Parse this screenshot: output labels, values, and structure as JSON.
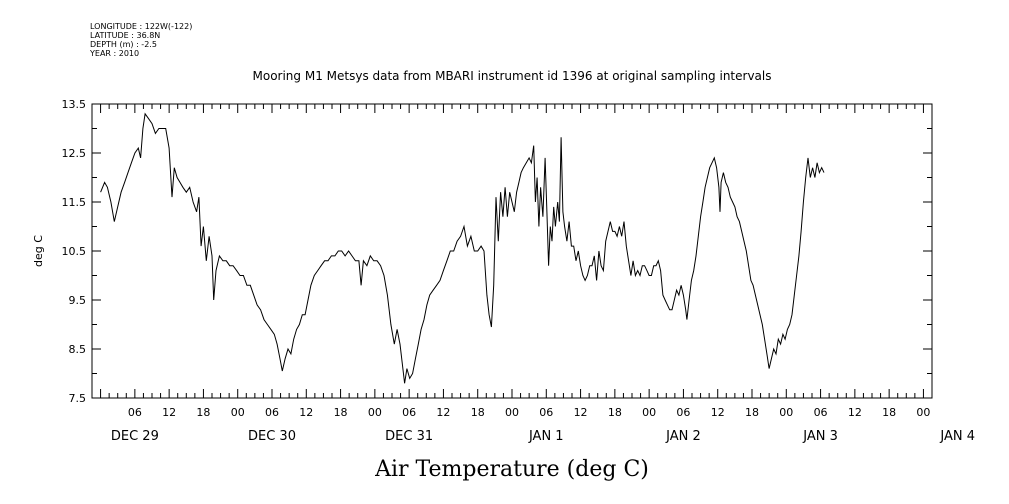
{
  "meta": {
    "longitude": "LONGITUDE : 122W(-122)",
    "latitude": "LATITUDE : 36.8N",
    "depth": "DEPTH (m) : -2.5",
    "year": "YEAR : 2010"
  },
  "chart_data": {
    "type": "line",
    "title": "Mooring M1 Metsys data from MBARI instrument id 1396 at original sampling intervals",
    "xlabel": "Air Temperature (deg C)",
    "ylabel": "deg C",
    "ylim": [
      7.5,
      13.5
    ],
    "yticks": [
      7.5,
      8.5,
      9.5,
      10.5,
      11.5,
      12.5,
      13.5
    ],
    "x_unit": "hours since Dec 29 00:00",
    "xlim": [
      -1.5,
      145.5
    ],
    "hour_tick_labels": [
      {
        "x": 6,
        "label": "06"
      },
      {
        "x": 12,
        "label": "12"
      },
      {
        "x": 18,
        "label": "18"
      },
      {
        "x": 24,
        "label": "00"
      },
      {
        "x": 30,
        "label": "06"
      },
      {
        "x": 36,
        "label": "12"
      },
      {
        "x": 42,
        "label": "18"
      },
      {
        "x": 48,
        "label": "00"
      },
      {
        "x": 54,
        "label": "06"
      },
      {
        "x": 60,
        "label": "12"
      },
      {
        "x": 66,
        "label": "18"
      },
      {
        "x": 72,
        "label": "00"
      },
      {
        "x": 78,
        "label": "06"
      },
      {
        "x": 84,
        "label": "12"
      },
      {
        "x": 90,
        "label": "18"
      },
      {
        "x": 96,
        "label": "00"
      },
      {
        "x": 102,
        "label": "06"
      },
      {
        "x": 108,
        "label": "12"
      },
      {
        "x": 114,
        "label": "18"
      },
      {
        "x": 120,
        "label": "00"
      },
      {
        "x": 126,
        "label": "06"
      },
      {
        "x": 132,
        "label": "12"
      },
      {
        "x": 138,
        "label": "18"
      },
      {
        "x": 144,
        "label": "00"
      }
    ],
    "day_labels": [
      {
        "x": 6,
        "label": "DEC 29"
      },
      {
        "x": 30,
        "label": "DEC 30"
      },
      {
        "x": 54,
        "label": "DEC 31"
      },
      {
        "x": 78,
        "label": "JAN  1"
      },
      {
        "x": 102,
        "label": "JAN  2"
      },
      {
        "x": 126,
        "label": "JAN  3"
      },
      {
        "x": 150,
        "label": "JAN  4"
      }
    ],
    "grid": false,
    "series": [
      {
        "color": "#000000",
        "points": [
          [
            0.0,
            11.7
          ],
          [
            0.7,
            11.9
          ],
          [
            1.2,
            11.8
          ],
          [
            1.8,
            11.5
          ],
          [
            2.4,
            11.1
          ],
          [
            3.0,
            11.4
          ],
          [
            3.6,
            11.7
          ],
          [
            4.2,
            11.9
          ],
          [
            4.8,
            12.1
          ],
          [
            5.4,
            12.3
          ],
          [
            6.0,
            12.5
          ],
          [
            6.6,
            12.6
          ],
          [
            7.0,
            12.4
          ],
          [
            7.4,
            13.0
          ],
          [
            7.8,
            13.3
          ],
          [
            8.4,
            13.2
          ],
          [
            9.0,
            13.1
          ],
          [
            9.6,
            12.9
          ],
          [
            10.2,
            13.0
          ],
          [
            10.8,
            13.0
          ],
          [
            11.4,
            13.0
          ],
          [
            12.0,
            12.6
          ],
          [
            12.5,
            11.6
          ],
          [
            12.9,
            12.2
          ],
          [
            13.4,
            12.0
          ],
          [
            13.9,
            11.9
          ],
          [
            14.4,
            11.8
          ],
          [
            15.0,
            11.7
          ],
          [
            15.6,
            11.8
          ],
          [
            16.2,
            11.5
          ],
          [
            16.8,
            11.3
          ],
          [
            17.2,
            11.6
          ],
          [
            17.6,
            10.6
          ],
          [
            18.0,
            11.0
          ],
          [
            18.5,
            10.3
          ],
          [
            19.0,
            10.8
          ],
          [
            19.5,
            10.4
          ],
          [
            19.8,
            9.5
          ],
          [
            20.2,
            10.1
          ],
          [
            20.8,
            10.4
          ],
          [
            21.4,
            10.3
          ],
          [
            22.0,
            10.3
          ],
          [
            22.6,
            10.2
          ],
          [
            23.2,
            10.2
          ],
          [
            23.8,
            10.1
          ],
          [
            24.4,
            10.0
          ],
          [
            25.0,
            10.0
          ],
          [
            25.6,
            9.8
          ],
          [
            26.2,
            9.8
          ],
          [
            26.8,
            9.6
          ],
          [
            27.4,
            9.4
          ],
          [
            28.0,
            9.3
          ],
          [
            28.6,
            9.1
          ],
          [
            29.2,
            9.0
          ],
          [
            29.8,
            8.9
          ],
          [
            30.4,
            8.8
          ],
          [
            30.9,
            8.6
          ],
          [
            31.4,
            8.3
          ],
          [
            31.8,
            8.05
          ],
          [
            32.3,
            8.3
          ],
          [
            32.8,
            8.5
          ],
          [
            33.3,
            8.4
          ],
          [
            33.8,
            8.7
          ],
          [
            34.3,
            8.9
          ],
          [
            34.8,
            9.0
          ],
          [
            35.3,
            9.2
          ],
          [
            35.8,
            9.2
          ],
          [
            36.3,
            9.5
          ],
          [
            36.8,
            9.8
          ],
          [
            37.4,
            10.0
          ],
          [
            38.0,
            10.1
          ],
          [
            38.6,
            10.2
          ],
          [
            39.2,
            10.3
          ],
          [
            39.8,
            10.3
          ],
          [
            40.4,
            10.4
          ],
          [
            41.0,
            10.4
          ],
          [
            41.6,
            10.5
          ],
          [
            42.2,
            10.5
          ],
          [
            42.8,
            10.4
          ],
          [
            43.4,
            10.5
          ],
          [
            44.0,
            10.4
          ],
          [
            44.6,
            10.3
          ],
          [
            45.2,
            10.3
          ],
          [
            45.6,
            9.8
          ],
          [
            46.0,
            10.3
          ],
          [
            46.6,
            10.2
          ],
          [
            47.2,
            10.4
          ],
          [
            47.8,
            10.3
          ],
          [
            48.4,
            10.3
          ],
          [
            49.0,
            10.2
          ],
          [
            49.6,
            10.0
          ],
          [
            50.2,
            9.6
          ],
          [
            50.8,
            9.0
          ],
          [
            51.4,
            8.6
          ],
          [
            51.9,
            8.9
          ],
          [
            52.4,
            8.6
          ],
          [
            52.8,
            8.2
          ],
          [
            53.2,
            7.8
          ],
          [
            53.6,
            8.1
          ],
          [
            54.1,
            7.9
          ],
          [
            54.6,
            8.0
          ],
          [
            55.1,
            8.3
          ],
          [
            55.6,
            8.6
          ],
          [
            56.1,
            8.9
          ],
          [
            56.6,
            9.1
          ],
          [
            57.1,
            9.4
          ],
          [
            57.6,
            9.6
          ],
          [
            58.2,
            9.7
          ],
          [
            58.8,
            9.8
          ],
          [
            59.4,
            9.9
          ],
          [
            60.0,
            10.1
          ],
          [
            60.6,
            10.3
          ],
          [
            61.2,
            10.5
          ],
          [
            61.8,
            10.5
          ],
          [
            62.4,
            10.7
          ],
          [
            63.0,
            10.8
          ],
          [
            63.6,
            11.0
          ],
          [
            64.2,
            10.6
          ],
          [
            64.8,
            10.8
          ],
          [
            65.4,
            10.5
          ],
          [
            66.0,
            10.5
          ],
          [
            66.6,
            10.6
          ],
          [
            67.1,
            10.5
          ],
          [
            67.6,
            9.6
          ],
          [
            68.0,
            9.2
          ],
          [
            68.4,
            8.95
          ],
          [
            68.8,
            9.8
          ],
          [
            69.2,
            11.6
          ],
          [
            69.6,
            10.7
          ],
          [
            70.0,
            11.7
          ],
          [
            70.4,
            11.2
          ],
          [
            70.8,
            11.8
          ],
          [
            71.2,
            11.2
          ],
          [
            71.6,
            11.7
          ],
          [
            72.0,
            11.5
          ],
          [
            72.4,
            11.3
          ],
          [
            72.8,
            11.7
          ],
          [
            73.2,
            11.9
          ],
          [
            73.6,
            12.1
          ],
          [
            74.0,
            12.2
          ],
          [
            74.5,
            12.3
          ],
          [
            75.0,
            12.4
          ],
          [
            75.4,
            12.3
          ],
          [
            75.8,
            12.65
          ],
          [
            76.1,
            11.5
          ],
          [
            76.4,
            12.0
          ],
          [
            76.7,
            11.0
          ],
          [
            77.0,
            11.8
          ],
          [
            77.4,
            11.2
          ],
          [
            77.8,
            12.4
          ],
          [
            78.1,
            11.3
          ],
          [
            78.4,
            10.2
          ],
          [
            78.7,
            11.0
          ],
          [
            79.0,
            10.7
          ],
          [
            79.3,
            11.4
          ],
          [
            79.6,
            11.0
          ],
          [
            80.0,
            11.5
          ],
          [
            80.3,
            11.1
          ],
          [
            80.6,
            12.82
          ],
          [
            80.9,
            11.3
          ],
          [
            81.2,
            11.0
          ],
          [
            81.6,
            10.7
          ],
          [
            82.0,
            11.1
          ],
          [
            82.4,
            10.6
          ],
          [
            82.8,
            10.6
          ],
          [
            83.2,
            10.3
          ],
          [
            83.6,
            10.5
          ],
          [
            84.0,
            10.2
          ],
          [
            84.4,
            10.0
          ],
          [
            84.8,
            9.9
          ],
          [
            85.2,
            10.0
          ],
          [
            85.6,
            10.2
          ],
          [
            86.0,
            10.2
          ],
          [
            86.4,
            10.4
          ],
          [
            86.8,
            9.9
          ],
          [
            87.2,
            10.5
          ],
          [
            87.6,
            10.2
          ],
          [
            88.0,
            10.1
          ],
          [
            88.4,
            10.7
          ],
          [
            88.8,
            10.9
          ],
          [
            89.2,
            11.1
          ],
          [
            89.6,
            10.9
          ],
          [
            90.0,
            10.9
          ],
          [
            90.4,
            10.8
          ],
          [
            90.8,
            11.0
          ],
          [
            91.2,
            10.8
          ],
          [
            91.6,
            11.1
          ],
          [
            92.0,
            10.6
          ],
          [
            92.4,
            10.3
          ],
          [
            92.8,
            10.0
          ],
          [
            93.2,
            10.3
          ],
          [
            93.6,
            10.0
          ],
          [
            94.0,
            10.1
          ],
          [
            94.4,
            10.0
          ],
          [
            94.8,
            10.2
          ],
          [
            95.2,
            10.2
          ],
          [
            95.6,
            10.1
          ],
          [
            96.0,
            10.0
          ],
          [
            96.4,
            10.0
          ],
          [
            96.8,
            10.2
          ],
          [
            97.2,
            10.2
          ],
          [
            97.6,
            10.3
          ],
          [
            98.0,
            10.1
          ],
          [
            98.4,
            9.6
          ],
          [
            98.8,
            9.5
          ],
          [
            99.2,
            9.4
          ],
          [
            99.6,
            9.3
          ],
          [
            100.0,
            9.3
          ],
          [
            100.4,
            9.5
          ],
          [
            100.8,
            9.7
          ],
          [
            101.2,
            9.6
          ],
          [
            101.6,
            9.8
          ],
          [
            102.0,
            9.6
          ],
          [
            102.4,
            9.3
          ],
          [
            102.6,
            9.1
          ],
          [
            103.0,
            9.5
          ],
          [
            103.4,
            9.9
          ],
          [
            103.8,
            10.1
          ],
          [
            104.2,
            10.4
          ],
          [
            104.6,
            10.8
          ],
          [
            105.0,
            11.2
          ],
          [
            105.4,
            11.5
          ],
          [
            105.8,
            11.8
          ],
          [
            106.2,
            12.0
          ],
          [
            106.6,
            12.2
          ],
          [
            107.0,
            12.3
          ],
          [
            107.4,
            12.4
          ],
          [
            107.8,
            12.2
          ],
          [
            108.2,
            11.8
          ],
          [
            108.4,
            11.3
          ],
          [
            108.6,
            11.9
          ],
          [
            109.0,
            12.1
          ],
          [
            109.4,
            11.9
          ],
          [
            109.8,
            11.8
          ],
          [
            110.2,
            11.6
          ],
          [
            110.6,
            11.5
          ],
          [
            111.0,
            11.4
          ],
          [
            111.4,
            11.2
          ],
          [
            111.8,
            11.1
          ],
          [
            112.2,
            10.9
          ],
          [
            112.6,
            10.7
          ],
          [
            113.0,
            10.5
          ],
          [
            113.4,
            10.2
          ],
          [
            113.8,
            9.9
          ],
          [
            114.2,
            9.8
          ],
          [
            114.6,
            9.6
          ],
          [
            115.0,
            9.4
          ],
          [
            115.4,
            9.2
          ],
          [
            115.8,
            9.0
          ],
          [
            116.2,
            8.7
          ],
          [
            116.6,
            8.4
          ],
          [
            117.0,
            8.1
          ],
          [
            117.4,
            8.3
          ],
          [
            117.8,
            8.5
          ],
          [
            118.2,
            8.4
          ],
          [
            118.6,
            8.7
          ],
          [
            119.0,
            8.6
          ],
          [
            119.4,
            8.8
          ],
          [
            119.8,
            8.7
          ],
          [
            120.2,
            8.9
          ],
          [
            120.6,
            9.0
          ],
          [
            121.0,
            9.2
          ],
          [
            121.4,
            9.6
          ],
          [
            121.8,
            10.0
          ],
          [
            122.2,
            10.4
          ],
          [
            122.6,
            10.9
          ],
          [
            123.0,
            11.5
          ],
          [
            123.4,
            12.0
          ],
          [
            123.8,
            12.4
          ],
          [
            124.2,
            12.0
          ],
          [
            124.6,
            12.2
          ],
          [
            125.0,
            12.0
          ],
          [
            125.4,
            12.3
          ],
          [
            125.8,
            12.1
          ],
          [
            126.2,
            12.2
          ],
          [
            126.6,
            12.1
          ]
        ]
      }
    ]
  }
}
